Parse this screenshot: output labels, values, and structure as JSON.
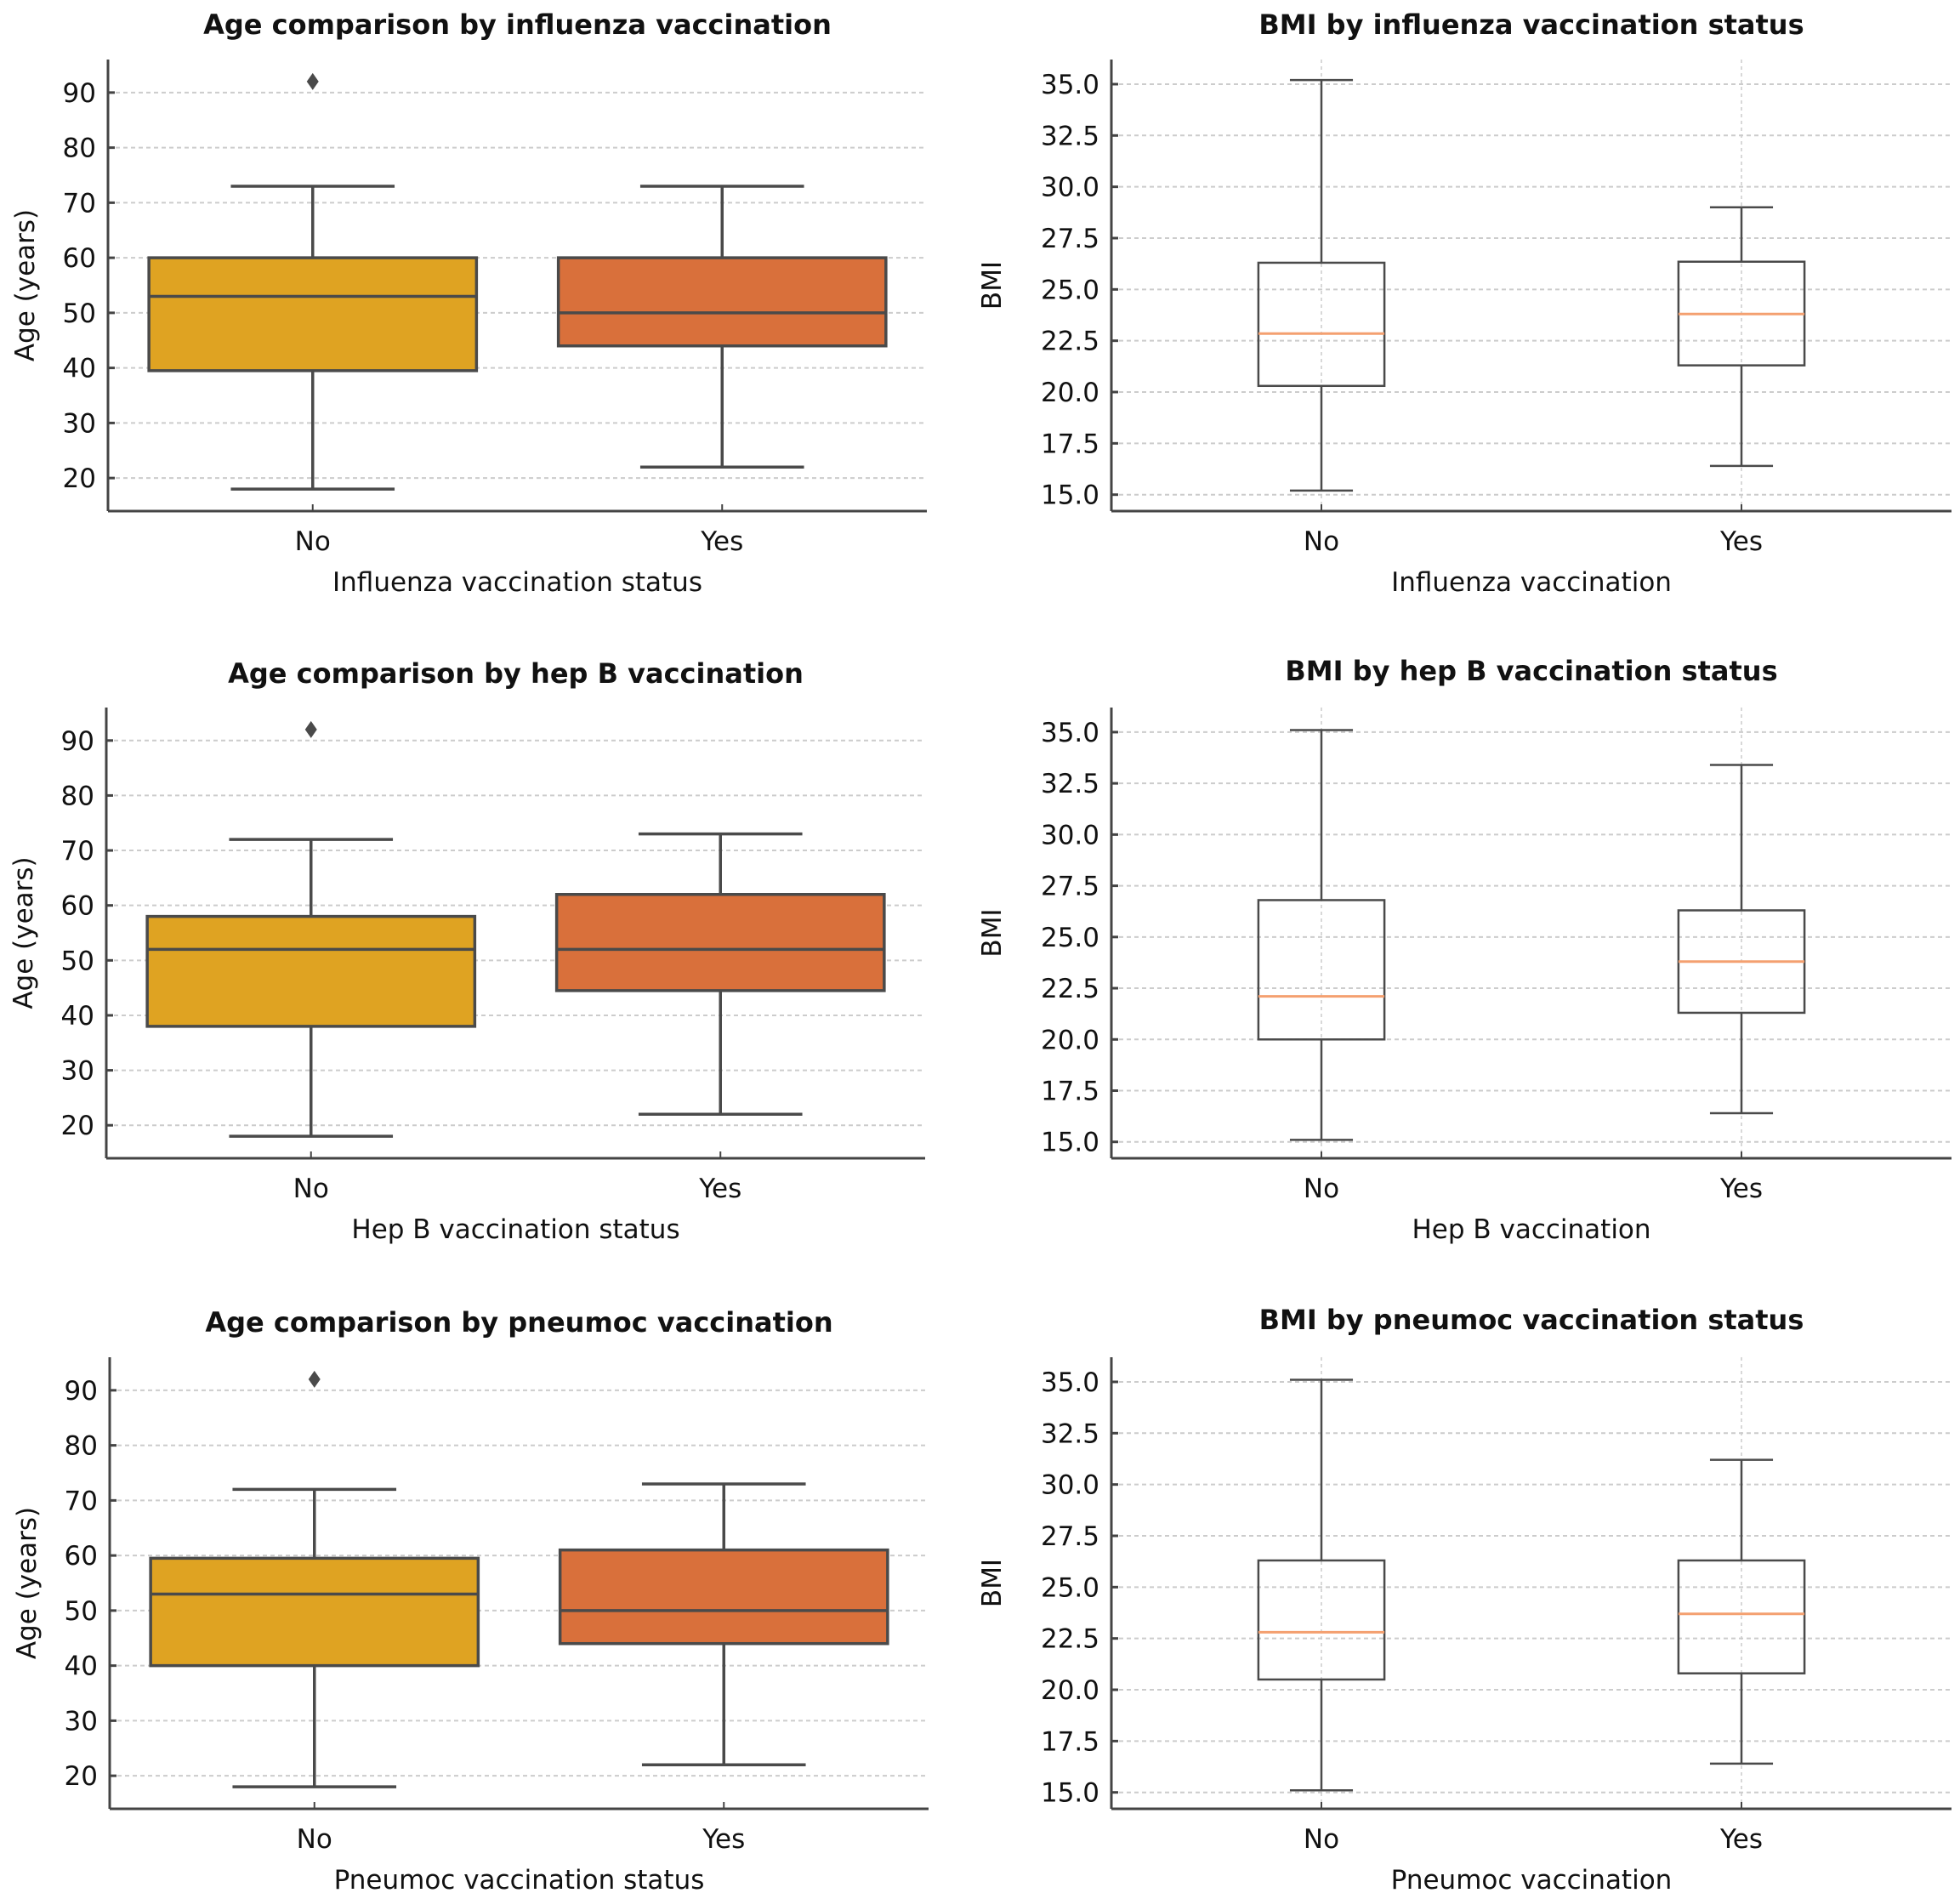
{
  "figure": {
    "colors": {
      "no_fill": "#DFA322",
      "yes_fill": "#D9703B",
      "box_edge": "#4a4a4a",
      "bmi_median": "#F4A070",
      "grid": "#cccccc",
      "axis": "#444444"
    }
  },
  "chart_data": [
    {
      "id": "age-influenza",
      "type": "box",
      "title": "Age comparison by influenza vaccination",
      "xlabel": "Influenza vaccination status",
      "ylabel": "Age (years)",
      "categories": [
        "No",
        "Yes"
      ],
      "yticks": [
        20,
        30,
        40,
        50,
        60,
        70,
        80,
        90
      ],
      "ylim": [
        14,
        96
      ],
      "grid": "horizontal",
      "style": "filled",
      "boxes": [
        {
          "category": "No",
          "whislo": 18,
          "q1": 39.5,
          "med": 53,
          "q3": 60,
          "whishi": 73,
          "fliers": [
            92
          ]
        },
        {
          "category": "Yes",
          "whislo": 22,
          "q1": 44,
          "med": 50,
          "q3": 60,
          "whishi": 73,
          "fliers": []
        }
      ]
    },
    {
      "id": "bmi-influenza",
      "type": "box",
      "title": "BMI by influenza vaccination status",
      "xlabel": "Influenza vaccination",
      "ylabel": "BMI",
      "categories": [
        "No",
        "Yes"
      ],
      "yticks": [
        15.0,
        17.5,
        20.0,
        22.5,
        25.0,
        27.5,
        30.0,
        32.5,
        35.0
      ],
      "ytick_labels": [
        "15.0",
        "17.5",
        "20.0",
        "22.5",
        "25.0",
        "27.5",
        "30.0",
        "32.5",
        "35.0"
      ],
      "ylim": [
        14.2,
        36.2
      ],
      "grid": "both",
      "style": "outline",
      "boxes": [
        {
          "category": "No",
          "whislo": 15.2,
          "q1": 20.3,
          "med": 22.85,
          "q3": 26.3,
          "whishi": 35.2,
          "fliers": []
        },
        {
          "category": "Yes",
          "whislo": 16.4,
          "q1": 21.3,
          "med": 23.8,
          "q3": 26.35,
          "whishi": 29.0,
          "fliers": []
        }
      ]
    },
    {
      "id": "age-hepb",
      "type": "box",
      "title": "Age comparison by hep B vaccination",
      "xlabel": "Hep B vaccination status",
      "ylabel": "Age (years)",
      "categories": [
        "No",
        "Yes"
      ],
      "yticks": [
        20,
        30,
        40,
        50,
        60,
        70,
        80,
        90
      ],
      "ylim": [
        14,
        96
      ],
      "grid": "horizontal",
      "style": "filled",
      "boxes": [
        {
          "category": "No",
          "whislo": 18,
          "q1": 38,
          "med": 52,
          "q3": 58,
          "whishi": 72,
          "fliers": [
            92
          ]
        },
        {
          "category": "Yes",
          "whislo": 22,
          "q1": 44.5,
          "med": 52,
          "q3": 62,
          "whishi": 73,
          "fliers": []
        }
      ]
    },
    {
      "id": "bmi-hepb",
      "type": "box",
      "title": "BMI by hep B vaccination status",
      "xlabel": "Hep B vaccination",
      "ylabel": "BMI",
      "categories": [
        "No",
        "Yes"
      ],
      "yticks": [
        15.0,
        17.5,
        20.0,
        22.5,
        25.0,
        27.5,
        30.0,
        32.5,
        35.0
      ],
      "ytick_labels": [
        "15.0",
        "17.5",
        "20.0",
        "22.5",
        "25.0",
        "27.5",
        "30.0",
        "32.5",
        "35.0"
      ],
      "ylim": [
        14.2,
        36.2
      ],
      "grid": "both",
      "style": "outline",
      "boxes": [
        {
          "category": "No",
          "whislo": 15.1,
          "q1": 20.0,
          "med": 22.1,
          "q3": 26.8,
          "whishi": 35.1,
          "fliers": []
        },
        {
          "category": "Yes",
          "whislo": 16.4,
          "q1": 21.3,
          "med": 23.8,
          "q3": 26.3,
          "whishi": 33.4,
          "fliers": []
        }
      ]
    },
    {
      "id": "age-pneumoc",
      "type": "box",
      "title": "Age comparison by pneumoc vaccination",
      "xlabel": "Pneumoc vaccination status",
      "ylabel": "Age (years)",
      "categories": [
        "No",
        "Yes"
      ],
      "yticks": [
        20,
        30,
        40,
        50,
        60,
        70,
        80,
        90
      ],
      "ylim": [
        14,
        96
      ],
      "grid": "horizontal",
      "style": "filled",
      "boxes": [
        {
          "category": "No",
          "whislo": 18,
          "q1": 40,
          "med": 53,
          "q3": 59.5,
          "whishi": 72,
          "fliers": [
            92
          ]
        },
        {
          "category": "Yes",
          "whislo": 22,
          "q1": 44,
          "med": 50,
          "q3": 61,
          "whishi": 73,
          "fliers": []
        }
      ]
    },
    {
      "id": "bmi-pneumoc",
      "type": "box",
      "title": "BMI by pneumoc vaccination status",
      "xlabel": "Pneumoc vaccination",
      "ylabel": "BMI",
      "categories": [
        "No",
        "Yes"
      ],
      "yticks": [
        15.0,
        17.5,
        20.0,
        22.5,
        25.0,
        27.5,
        30.0,
        32.5,
        35.0
      ],
      "ytick_labels": [
        "15.0",
        "17.5",
        "20.0",
        "22.5",
        "25.0",
        "27.5",
        "30.0",
        "32.5",
        "35.0"
      ],
      "ylim": [
        14.2,
        36.2
      ],
      "grid": "both",
      "style": "outline",
      "boxes": [
        {
          "category": "No",
          "whislo": 15.1,
          "q1": 20.5,
          "med": 22.8,
          "q3": 26.3,
          "whishi": 35.1,
          "fliers": []
        },
        {
          "category": "Yes",
          "whislo": 16.4,
          "q1": 20.8,
          "med": 23.7,
          "q3": 26.3,
          "whishi": 31.2,
          "fliers": []
        }
      ]
    }
  ]
}
